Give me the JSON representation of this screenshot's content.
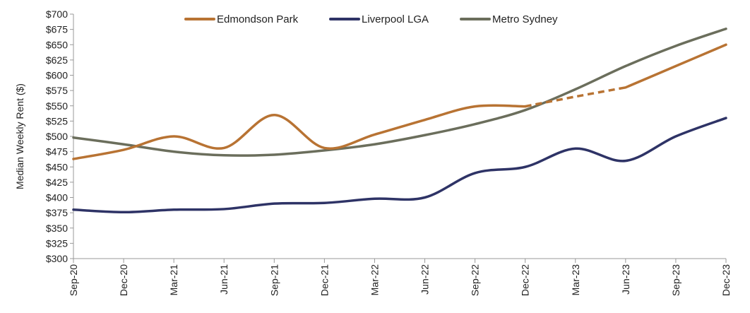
{
  "chart_data": {
    "type": "line",
    "title": "",
    "xlabel": "",
    "ylabel": "Median Weekly Rent ($)",
    "ylim": [
      300,
      700
    ],
    "ytick_step": 25,
    "ytick_prefix": "$",
    "categories": [
      "Sep-20",
      "Dec-20",
      "Mar-21",
      "Jun-21",
      "Sep-21",
      "Dec-21",
      "Mar-22",
      "Jun-22",
      "Sep-22",
      "Dec-22",
      "Mar-23",
      "Jun-23",
      "Sep-23",
      "Dec-23"
    ],
    "grid": false,
    "legend_position": "top",
    "series": [
      {
        "name": "Edmondson Park",
        "color": "#B87333",
        "values": [
          463,
          478,
          500,
          481,
          535,
          481,
          503,
          527,
          549,
          549,
          565,
          580,
          615,
          650
        ],
        "dashed_from_index": 9,
        "dashed_to_index": 11
      },
      {
        "name": "Liverpool LGA",
        "color": "#2E3366",
        "values": [
          380,
          376,
          380,
          381,
          390,
          391,
          398,
          400,
          440,
          450,
          480,
          460,
          500,
          530
        ]
      },
      {
        "name": "Metro Sydney",
        "color": "#6B6E5C",
        "values": [
          498,
          487,
          475,
          469,
          470,
          477,
          487,
          502,
          520,
          543,
          577,
          615,
          648,
          676
        ]
      }
    ]
  }
}
